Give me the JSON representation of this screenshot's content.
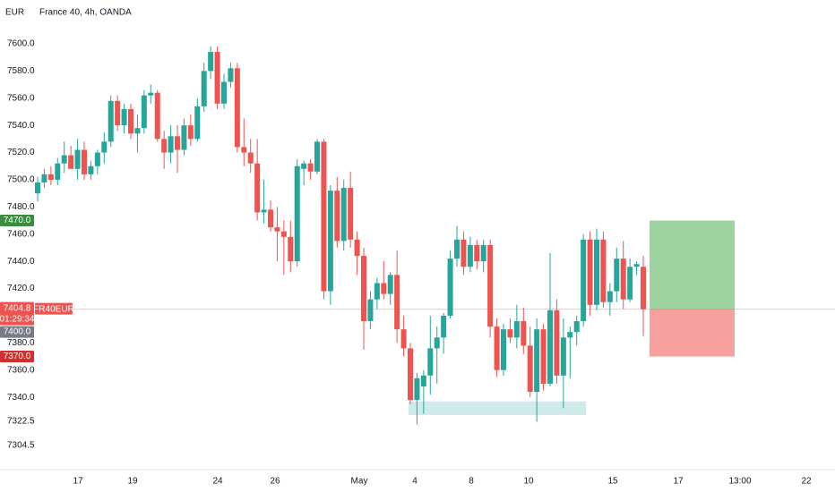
{
  "chart_data": {
    "type": "candlestick",
    "title": "France 40, 4h, OANDA",
    "currency": "EUR",
    "ylim": [
      7286.8,
      7632.2
    ],
    "yticks": [
      {
        "value": 7600,
        "label": "7600.0"
      },
      {
        "value": 7580,
        "label": "7580.0"
      },
      {
        "value": 7560,
        "label": "7560.0"
      },
      {
        "value": 7540,
        "label": "7540.0"
      },
      {
        "value": 7520,
        "label": "7520.0"
      },
      {
        "value": 7500,
        "label": "7500.0"
      },
      {
        "value": 7480,
        "label": "7480.0"
      },
      {
        "value": 7460,
        "label": "7460.0"
      },
      {
        "value": 7440,
        "label": "7440.0"
      },
      {
        "value": 7420,
        "label": "7420.0"
      },
      {
        "value": 7380,
        "label": "7380.0"
      },
      {
        "value": 7360,
        "label": "7360.0"
      },
      {
        "value": 7340,
        "label": "7340.0"
      },
      {
        "value": 7322.5,
        "label": "7322.5"
      },
      {
        "value": 7304.5,
        "label": "7304.5"
      }
    ],
    "xlabels": [
      "17",
      "19",
      "24",
      "26",
      "May",
      "4",
      "8",
      "10",
      "15",
      "17",
      "13:00",
      "22"
    ],
    "up_color": "#26a69a",
    "down_color": "#ef5350",
    "candles": [
      [
        7490,
        7502,
        7484,
        7498
      ],
      [
        7498,
        7508,
        7494,
        7504
      ],
      [
        7504,
        7510,
        7496,
        7500
      ],
      [
        7500,
        7516,
        7496,
        7512
      ],
      [
        7512,
        7528,
        7505,
        7518
      ],
      [
        7518,
        7525,
        7510,
        7508
      ],
      [
        7508,
        7530,
        7500,
        7522
      ],
      [
        7522,
        7528,
        7500,
        7504
      ],
      [
        7504,
        7514,
        7500,
        7510
      ],
      [
        7510,
        7522,
        7504,
        7520
      ],
      [
        7520,
        7535,
        7512,
        7528
      ],
      [
        7528,
        7562,
        7524,
        7558
      ],
      [
        7558,
        7562,
        7536,
        7540
      ],
      [
        7540,
        7556,
        7534,
        7552
      ],
      [
        7552,
        7556,
        7530,
        7534
      ],
      [
        7534,
        7548,
        7520,
        7538
      ],
      [
        7538,
        7566,
        7534,
        7562
      ],
      [
        7562,
        7570,
        7556,
        7564
      ],
      [
        7564,
        7566,
        7528,
        7530
      ],
      [
        7530,
        7536,
        7508,
        7520
      ],
      [
        7520,
        7540,
        7512,
        7532
      ],
      [
        7532,
        7540,
        7505,
        7522
      ],
      [
        7522,
        7545,
        7518,
        7540
      ],
      [
        7540,
        7548,
        7525,
        7530
      ],
      [
        7530,
        7560,
        7528,
        7554
      ],
      [
        7554,
        7586,
        7550,
        7580
      ],
      [
        7580,
        7598,
        7574,
        7594
      ],
      [
        7594,
        7598,
        7552,
        7556
      ],
      [
        7556,
        7578,
        7552,
        7572
      ],
      [
        7572,
        7586,
        7568,
        7582
      ],
      [
        7582,
        7586,
        7520,
        7524
      ],
      [
        7524,
        7545,
        7510,
        7520
      ],
      [
        7520,
        7530,
        7505,
        7512
      ],
      [
        7512,
        7530,
        7470,
        7476
      ],
      [
        7476,
        7500,
        7468,
        7478
      ],
      [
        7478,
        7485,
        7462,
        7465
      ],
      [
        7465,
        7480,
        7440,
        7462
      ],
      [
        7462,
        7470,
        7430,
        7458
      ],
      [
        7458,
        7470,
        7432,
        7440
      ],
      [
        7440,
        7515,
        7436,
        7510
      ],
      [
        7508,
        7514,
        7496,
        7512
      ],
      [
        7512,
        7515,
        7500,
        7506
      ],
      [
        7506,
        7530,
        7504,
        7528
      ],
      [
        7528,
        7530,
        7412,
        7418
      ],
      [
        7418,
        7496,
        7408,
        7492
      ],
      [
        7492,
        7502,
        7450,
        7455
      ],
      [
        7455,
        7500,
        7448,
        7494
      ],
      [
        7494,
        7506,
        7450,
        7456
      ],
      [
        7456,
        7462,
        7430,
        7444
      ],
      [
        7444,
        7450,
        7375,
        7396
      ],
      [
        7396,
        7418,
        7390,
        7412
      ],
      [
        7412,
        7428,
        7405,
        7424
      ],
      [
        7424,
        7440,
        7412,
        7416
      ],
      [
        7416,
        7432,
        7408,
        7430
      ],
      [
        7430,
        7448,
        7380,
        7390
      ],
      [
        7390,
        7400,
        7370,
        7376
      ],
      [
        7376,
        7380,
        7335,
        7338
      ],
      [
        7338,
        7358,
        7320,
        7354
      ],
      [
        7348,
        7360,
        7328,
        7356
      ],
      [
        7356,
        7400,
        7342,
        7376
      ],
      [
        7376,
        7392,
        7350,
        7384
      ],
      [
        7384,
        7402,
        7372,
        7400
      ],
      [
        7400,
        7448,
        7398,
        7442
      ],
      [
        7442,
        7466,
        7436,
        7456
      ],
      [
        7456,
        7462,
        7430,
        7436
      ],
      [
        7436,
        7458,
        7432,
        7452
      ],
      [
        7452,
        7456,
        7434,
        7440
      ],
      [
        7440,
        7456,
        7432,
        7452
      ],
      [
        7452,
        7456,
        7384,
        7392
      ],
      [
        7392,
        7398,
        7355,
        7360
      ],
      [
        7360,
        7394,
        7356,
        7390
      ],
      [
        7390,
        7398,
        7380,
        7384
      ],
      [
        7384,
        7408,
        7376,
        7396
      ],
      [
        7396,
        7406,
        7372,
        7378
      ],
      [
        7378,
        7392,
        7340,
        7344
      ],
      [
        7344,
        7398,
        7322,
        7390
      ],
      [
        7390,
        7394,
        7345,
        7350
      ],
      [
        7350,
        7446,
        7348,
        7404
      ],
      [
        7404,
        7412,
        7350,
        7356
      ],
      [
        7356,
        7398,
        7332,
        7384
      ],
      [
        7384,
        7392,
        7354,
        7388
      ],
      [
        7388,
        7400,
        7378,
        7396
      ],
      [
        7396,
        7460,
        7392,
        7456
      ],
      [
        7456,
        7462,
        7400,
        7408
      ],
      [
        7408,
        7464,
        7404,
        7456
      ],
      [
        7456,
        7462,
        7406,
        7410
      ],
      [
        7410,
        7424,
        7400,
        7418
      ],
      [
        7418,
        7450,
        7410,
        7442
      ],
      [
        7442,
        7455,
        7405,
        7412
      ],
      [
        7412,
        7442,
        7410,
        7436
      ],
      [
        7436,
        7440,
        7430,
        7438
      ],
      [
        7436,
        7444,
        7385,
        7404.8
      ]
    ],
    "demand_zone": [
      7327,
      7337
    ],
    "position": {
      "target": {
        "value": 7470,
        "label": "7470.0"
      },
      "entry": {
        "value": 7400,
        "label": "7400.0"
      },
      "stop": {
        "value": 7370,
        "label": "7370.0"
      }
    },
    "last_price": {
      "value": 7404.8,
      "label": "7404.8"
    },
    "symbol": "FR40EUR",
    "countdown": "01:29:34"
  }
}
